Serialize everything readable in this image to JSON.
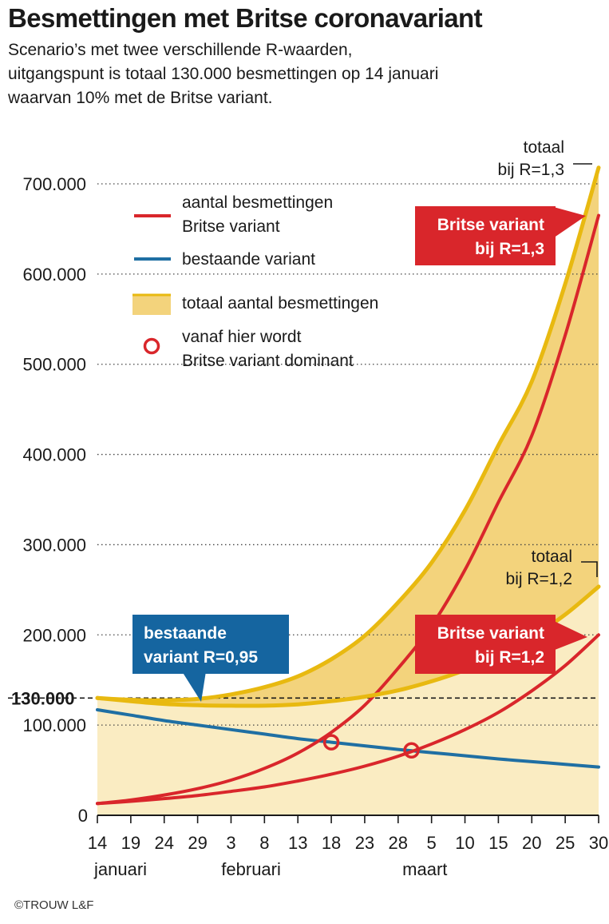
{
  "header": {
    "title": "Besmettingen met Britse coronavariant",
    "subtitle_lines": [
      "Scenario’s met twee verschillende R-waarden,",
      "uitgangspunt is totaal 130.000 besmettingen op 14 januari",
      "waarvan 10% met de Britse variant."
    ]
  },
  "credit": "©TROUW L&F",
  "colors": {
    "british": "#d9262b",
    "existing": "#1f6fa3",
    "total_line": "#e8b910",
    "total_fill_high": "#f3d37c",
    "total_fill_low": "#faecc2",
    "british_box": "#d9262b",
    "existing_box": "#1565a0"
  },
  "chart_data": {
    "type": "line",
    "x_unit": "day",
    "x_range": [
      "2021-01-14",
      "2021-03-30"
    ],
    "ylim": [
      0,
      700000
    ],
    "y_ticks": [
      {
        "value": 0,
        "label": "0"
      },
      {
        "value": 100000,
        "label": "100.000"
      },
      {
        "value": 200000,
        "label": "200.000"
      },
      {
        "value": 300000,
        "label": "300.000"
      },
      {
        "value": 400000,
        "label": "400.000"
      },
      {
        "value": 500000,
        "label": "500.000"
      },
      {
        "value": 600000,
        "label": "600.000"
      },
      {
        "value": 700000,
        "label": "700.000"
      }
    ],
    "reference_line": {
      "value": 130000,
      "label": "130.000",
      "style": "dashed"
    },
    "grid": "horizontal dotted",
    "x_ticks": [
      {
        "date": "2021-01-14",
        "label": "14"
      },
      {
        "date": "2021-01-19",
        "label": "19"
      },
      {
        "date": "2021-01-24",
        "label": "24"
      },
      {
        "date": "2021-01-29",
        "label": "29"
      },
      {
        "date": "2021-02-03",
        "label": "3"
      },
      {
        "date": "2021-02-08",
        "label": "8"
      },
      {
        "date": "2021-02-13",
        "label": "13"
      },
      {
        "date": "2021-02-18",
        "label": "18"
      },
      {
        "date": "2021-02-23",
        "label": "23"
      },
      {
        "date": "2021-02-28",
        "label": "28"
      },
      {
        "date": "2021-03-05",
        "label": "5"
      },
      {
        "date": "2021-03-10",
        "label": "10"
      },
      {
        "date": "2021-03-15",
        "label": "15"
      },
      {
        "date": "2021-03-20",
        "label": "20"
      },
      {
        "date": "2021-03-25",
        "label": "25"
      },
      {
        "date": "2021-03-30",
        "label": "30"
      }
    ],
    "month_labels": [
      {
        "date": "2021-01-14",
        "label": "januari"
      },
      {
        "date": "2021-02-06",
        "label": "februari"
      },
      {
        "date": "2021-03-04",
        "label": "maart"
      }
    ],
    "series": [
      {
        "name": "bestaande variant R=0,95",
        "color_key": "existing",
        "points": [
          [
            "2021-01-14",
            117000
          ],
          [
            "2021-01-19",
            111000
          ],
          [
            "2021-01-24",
            105000
          ],
          [
            "2021-01-29",
            100000
          ],
          [
            "2021-02-03",
            95000
          ],
          [
            "2021-02-08",
            90000
          ],
          [
            "2021-02-13",
            85000
          ],
          [
            "2021-02-18",
            81000
          ],
          [
            "2021-02-23",
            77000
          ],
          [
            "2021-02-28",
            73000
          ],
          [
            "2021-03-05",
            69500
          ],
          [
            "2021-03-10",
            66000
          ],
          [
            "2021-03-15",
            62500
          ],
          [
            "2021-03-20",
            59500
          ],
          [
            "2021-03-25",
            56500
          ],
          [
            "2021-03-30",
            53500
          ]
        ]
      },
      {
        "name": "Britse variant bij R=1,3",
        "color_key": "british",
        "points": [
          [
            "2021-01-14",
            13000
          ],
          [
            "2021-01-19",
            17000
          ],
          [
            "2021-01-24",
            22500
          ],
          [
            "2021-01-29",
            29500
          ],
          [
            "2021-02-03",
            39000
          ],
          [
            "2021-02-08",
            52000
          ],
          [
            "2021-02-13",
            69000
          ],
          [
            "2021-02-18",
            92000
          ],
          [
            "2021-02-23",
            122000
          ],
          [
            "2021-02-28",
            163000
          ],
          [
            "2021-03-05",
            210000
          ],
          [
            "2021-03-10",
            272000
          ],
          [
            "2021-03-15",
            347000
          ],
          [
            "2021-03-20",
            421000
          ],
          [
            "2021-03-25",
            532000
          ],
          [
            "2021-03-30",
            665000
          ]
        ]
      },
      {
        "name": "Britse variant bij R=1,2",
        "color_key": "british",
        "points": [
          [
            "2021-01-14",
            13000
          ],
          [
            "2021-01-19",
            15500
          ],
          [
            "2021-01-24",
            18500
          ],
          [
            "2021-01-29",
            22000
          ],
          [
            "2021-02-03",
            26500
          ],
          [
            "2021-02-08",
            31500
          ],
          [
            "2021-02-13",
            38000
          ],
          [
            "2021-02-18",
            45500
          ],
          [
            "2021-02-23",
            54500
          ],
          [
            "2021-02-28",
            65500
          ],
          [
            "2021-03-05",
            79000
          ],
          [
            "2021-03-10",
            95000
          ],
          [
            "2021-03-15",
            114000
          ],
          [
            "2021-03-20",
            138000
          ],
          [
            "2021-03-25",
            166000
          ],
          [
            "2021-03-30",
            200000
          ]
        ]
      },
      {
        "name": "totaal bij R=1,3",
        "color_key": "total_line",
        "points": [
          [
            "2021-01-14",
            130000
          ],
          [
            "2021-01-19",
            128000
          ],
          [
            "2021-01-24",
            127500
          ],
          [
            "2021-01-29",
            129000
          ],
          [
            "2021-02-03",
            134000
          ],
          [
            "2021-02-08",
            142000
          ],
          [
            "2021-02-13",
            154000
          ],
          [
            "2021-02-18",
            173000
          ],
          [
            "2021-02-23",
            199000
          ],
          [
            "2021-02-28",
            236000
          ],
          [
            "2021-03-05",
            280000
          ],
          [
            "2021-03-10",
            338000
          ],
          [
            "2021-03-15",
            410000
          ],
          [
            "2021-03-20",
            481000
          ],
          [
            "2021-03-25",
            589000
          ],
          [
            "2021-03-30",
            718000
          ]
        ]
      },
      {
        "name": "totaal bij R=1,2",
        "color_key": "total_line",
        "points": [
          [
            "2021-01-14",
            130000
          ],
          [
            "2021-01-19",
            126500
          ],
          [
            "2021-01-24",
            123500
          ],
          [
            "2021-01-29",
            122000
          ],
          [
            "2021-02-03",
            121500
          ],
          [
            "2021-02-08",
            121500
          ],
          [
            "2021-02-13",
            123000
          ],
          [
            "2021-02-18",
            126500
          ],
          [
            "2021-02-23",
            131500
          ],
          [
            "2021-02-28",
            138500
          ],
          [
            "2021-03-05",
            148500
          ],
          [
            "2021-03-10",
            161000
          ],
          [
            "2021-03-15",
            176500
          ],
          [
            "2021-03-20",
            197500
          ],
          [
            "2021-03-25",
            222500
          ],
          [
            "2021-03-30",
            253500
          ]
        ]
      }
    ],
    "dominance_points": [
      {
        "date": "2021-02-18",
        "value": 81000,
        "scenario": "R=1,3"
      },
      {
        "date": "2021-03-02",
        "value": 72000,
        "scenario": "R=1,2"
      }
    ],
    "legend": {
      "placement": "top-left",
      "items": [
        {
          "label": "aantal besmettingen\nBritse variant",
          "symbol": "line",
          "color_key": "british"
        },
        {
          "label": "bestaande variant",
          "symbol": "line",
          "color_key": "existing"
        },
        {
          "label": "totaal aantal besmettingen",
          "symbol": "area",
          "color_key": "total_fill_high"
        },
        {
          "label": "vanaf hier wordt\nBritse variant dominant",
          "symbol": "circle",
          "color_key": "british"
        }
      ]
    },
    "annotations": [
      {
        "label": "totaal\nbij R=1,3",
        "style": "plain",
        "target": "totaal bij R=1,3"
      },
      {
        "label": "totaal\nbij R=1,2",
        "style": "plain",
        "target": "totaal bij R=1,2"
      },
      {
        "label": "Britse variant\nbij R=1,3",
        "style": "red-box",
        "target": "Britse variant bij R=1,3"
      },
      {
        "label": "Britse variant\nbij R=1,2",
        "style": "red-box",
        "target": "Britse variant bij R=1,2"
      },
      {
        "label": "bestaande\nvariant R=0,95",
        "style": "blue-box",
        "target": "bestaande variant R=0,95"
      }
    ]
  }
}
